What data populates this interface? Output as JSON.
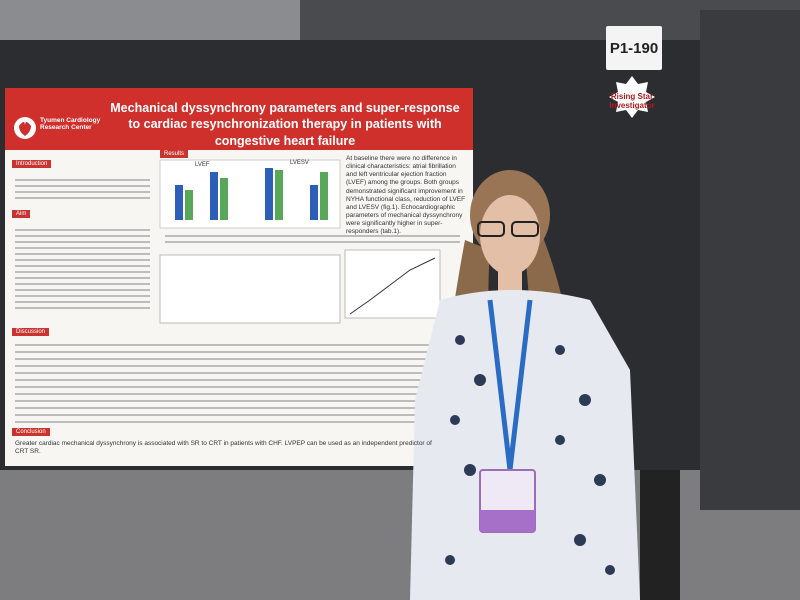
{
  "board_label": "P1-190",
  "badge": "Rising Star Investigator",
  "poster": {
    "logo_text": "Tyumen Cardiology Research Center",
    "title": "Mechanical dyssynchrony parameters and super-response to cardiac resynchronization therapy in patients with congestive heart failure",
    "sections": [
      "Introduction",
      "Aim",
      "Results",
      "Discussion",
      "Conclusion"
    ],
    "chart_labels": [
      "LVEF",
      "LVESV"
    ],
    "results_text": "At baseline there were no difference in clinical characteristics: atrial fibrillation and left ventricular ejection fraction (LVEF) among the groups. Both groups demonstrated significant improvement in NYHA functional class, reduction of LVEF and LVESV (fig.1). Echocardiographic parameters of mechanical dyssynchrony were significantly higher in super-responders (tab.1).",
    "conclusion_text": "Greater cardiac mechanical dyssynchrony is associated with SR to CRT in patients with CHF. LVPEP can be used as an independent predictor of CRT SR."
  }
}
